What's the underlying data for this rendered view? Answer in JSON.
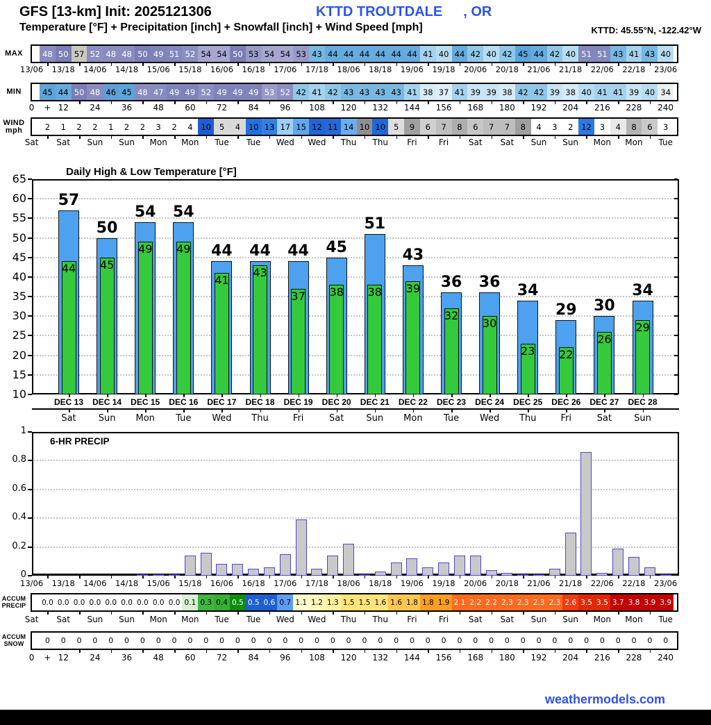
{
  "header": {
    "title": "GFS [13-km] Init: 2025121306",
    "station": "KTTD TROUTDALE",
    "state": ", OR",
    "subtitle": "Temperature [°F] + Precipitation [inch] + Snowfall [inch] + Wind Speed [mph]",
    "coordinates": "KTTD: 45.55°N, -122.42°W"
  },
  "strips": {
    "datetime_labels": [
      "13/06",
      "13/18",
      "14/06",
      "14/18",
      "15/06",
      "15/18",
      "16/06",
      "16/18",
      "17/06",
      "17/18",
      "18/06",
      "18/18",
      "19/06",
      "19/18",
      "20/06",
      "20/18",
      "21/06",
      "21/18",
      "22/06",
      "22/18",
      "23/06"
    ],
    "hour_labels": [
      "0",
      "+",
      "12",
      "24",
      "36",
      "48",
      "60",
      "72",
      "84",
      "96",
      "108",
      "120",
      "132",
      "144",
      "156",
      "168",
      "180",
      "192",
      "204",
      "216",
      "228",
      "240"
    ],
    "day_labels": [
      "Sat",
      "Sat",
      "Sun",
      "Sun",
      "Mon",
      "Mon",
      "Tue",
      "Tue",
      "Wed",
      "Wed",
      "Thu",
      "Thu",
      "Fri",
      "Fri",
      "Sat",
      "Sat",
      "Sun",
      "Sun",
      "Mon",
      "Mon",
      "Tue"
    ],
    "max": {
      "label": "MAX",
      "cells": [
        [
          "48",
          "#8a8cc0",
          "#ffffff"
        ],
        [
          "50",
          "#7a7db6",
          "#ffffff"
        ],
        [
          "57",
          "#c9c9bc",
          "#000000"
        ],
        [
          "52",
          "#8b8ec2",
          "#ffffff"
        ],
        [
          "48",
          "#8a8cc0",
          "#ffffff"
        ],
        [
          "48",
          "#8a8cc0",
          "#ffffff"
        ],
        [
          "50",
          "#7a7db6",
          "#ffffff"
        ],
        [
          "49",
          "#8083ba",
          "#ffffff"
        ],
        [
          "51",
          "#8487bd",
          "#ffffff"
        ],
        [
          "52",
          "#8b8ec2",
          "#ffffff"
        ],
        [
          "54",
          "#a5a7d1",
          "#000000"
        ],
        [
          "54",
          "#a5a7d1",
          "#000000"
        ],
        [
          "50",
          "#7a7db6",
          "#ffffff"
        ],
        [
          "53",
          "#989bc8",
          "#000000"
        ],
        [
          "54",
          "#a5a7d1",
          "#000000"
        ],
        [
          "54",
          "#a5a7d1",
          "#000000"
        ],
        [
          "53",
          "#989bc8",
          "#000000"
        ],
        [
          "43",
          "#78b8e2",
          "#000000"
        ],
        [
          "44",
          "#66abde",
          "#000000"
        ],
        [
          "44",
          "#66abde",
          "#000000"
        ],
        [
          "44",
          "#66abde",
          "#000000"
        ],
        [
          "44",
          "#66abde",
          "#000000"
        ],
        [
          "44",
          "#66abde",
          "#000000"
        ],
        [
          "44",
          "#66abde",
          "#000000"
        ],
        [
          "41",
          "#a5d3ee",
          "#000000"
        ],
        [
          "40",
          "#b7ddf2",
          "#000000"
        ],
        [
          "44",
          "#66abde",
          "#000000"
        ],
        [
          "42",
          "#8fc7e9",
          "#000000"
        ],
        [
          "40",
          "#b7ddf2",
          "#000000"
        ],
        [
          "42",
          "#8fc7e9",
          "#000000"
        ],
        [
          "45",
          "#5ca4da",
          "#000000"
        ],
        [
          "44",
          "#66abde",
          "#000000"
        ],
        [
          "42",
          "#8fc7e9",
          "#000000"
        ],
        [
          "40",
          "#b7ddf2",
          "#000000"
        ],
        [
          "51",
          "#8487bd",
          "#ffffff"
        ],
        [
          "51",
          "#8487bd",
          "#ffffff"
        ],
        [
          "43",
          "#78b8e2",
          "#000000"
        ],
        [
          "41",
          "#a5d3ee",
          "#000000"
        ],
        [
          "43",
          "#78b8e2",
          "#000000"
        ],
        [
          "40",
          "#b7ddf2",
          "#000000"
        ]
      ]
    },
    "min": {
      "label": "MIN",
      "cells": [
        [
          "45",
          "#5ca4da",
          "#000000"
        ],
        [
          "44",
          "#66abde",
          "#000000"
        ],
        [
          "50",
          "#7a7db6",
          "#ffffff"
        ],
        [
          "48",
          "#8a8cc0",
          "#ffffff"
        ],
        [
          "46",
          "#5f9ed6",
          "#000000"
        ],
        [
          "45",
          "#5ca4da",
          "#000000"
        ],
        [
          "48",
          "#8a8cc0",
          "#ffffff"
        ],
        [
          "47",
          "#858cc0",
          "#ffffff"
        ],
        [
          "49",
          "#8083ba",
          "#ffffff"
        ],
        [
          "49",
          "#8083ba",
          "#ffffff"
        ],
        [
          "52",
          "#8b8ec2",
          "#ffffff"
        ],
        [
          "49",
          "#8083ba",
          "#ffffff"
        ],
        [
          "49",
          "#8083ba",
          "#ffffff"
        ],
        [
          "49",
          "#8083ba",
          "#ffffff"
        ],
        [
          "53",
          "#989bc8",
          "#ffffff"
        ],
        [
          "52",
          "#8b8ec2",
          "#ffffff"
        ],
        [
          "42",
          "#8fc7e9",
          "#000000"
        ],
        [
          "41",
          "#a5d3ee",
          "#000000"
        ],
        [
          "42",
          "#8fc7e9",
          "#000000"
        ],
        [
          "43",
          "#78b8e2",
          "#000000"
        ],
        [
          "43",
          "#78b8e2",
          "#000000"
        ],
        [
          "43",
          "#78b8e2",
          "#000000"
        ],
        [
          "43",
          "#78b8e2",
          "#000000"
        ],
        [
          "41",
          "#a5d3ee",
          "#000000"
        ],
        [
          "38",
          "#d6ecf7",
          "#000000"
        ],
        [
          "37",
          "#deeff9",
          "#000000"
        ],
        [
          "41",
          "#a5d3ee",
          "#000000"
        ],
        [
          "39",
          "#c8e5f4",
          "#000000"
        ],
        [
          "39",
          "#c8e5f4",
          "#000000"
        ],
        [
          "38",
          "#d6ecf7",
          "#000000"
        ],
        [
          "42",
          "#8fc7e9",
          "#000000"
        ],
        [
          "42",
          "#8fc7e9",
          "#000000"
        ],
        [
          "39",
          "#c8e5f4",
          "#000000"
        ],
        [
          "38",
          "#d6ecf7",
          "#000000"
        ],
        [
          "40",
          "#b7ddf2",
          "#000000"
        ],
        [
          "41",
          "#a5d3ee",
          "#000000"
        ],
        [
          "41",
          "#a5d3ee",
          "#000000"
        ],
        [
          "39",
          "#c8e5f4",
          "#000000"
        ],
        [
          "40",
          "#b7ddf2",
          "#000000"
        ],
        [
          "34",
          "#e9f2ef",
          "#000000"
        ]
      ]
    },
    "wind": {
      "label": "WIND",
      "sublabel": "mph",
      "cells": [
        [
          "2",
          "#ffffff"
        ],
        [
          "1",
          "#ffffff"
        ],
        [
          "2",
          "#ffffff"
        ],
        [
          "2",
          "#ffffff"
        ],
        [
          "1",
          "#ffffff"
        ],
        [
          "2",
          "#ffffff"
        ],
        [
          "2",
          "#ffffff"
        ],
        [
          "3",
          "#ffffff"
        ],
        [
          "2",
          "#ffffff"
        ],
        [
          "4",
          "#ffffff"
        ],
        [
          "10",
          "#1b5fd3"
        ],
        [
          "5",
          "#d9d9d9"
        ],
        [
          "4",
          "#d9d9d9"
        ],
        [
          "10",
          "#2271de"
        ],
        [
          "13",
          "#3180e3"
        ],
        [
          "17",
          "#9fcef6"
        ],
        [
          "15",
          "#62a7ed"
        ],
        [
          "12",
          "#2066d6"
        ],
        [
          "11",
          "#2569d8"
        ],
        [
          "14",
          "#6cadf0"
        ],
        [
          "10",
          "#8f8f8f"
        ],
        [
          "10",
          "#2068d7"
        ],
        [
          "5",
          "#dedede"
        ],
        [
          "9",
          "#a0a0a0"
        ],
        [
          "6",
          "#cfcfcf"
        ],
        [
          "7",
          "#bfbfbf"
        ],
        [
          "8",
          "#aeaeae"
        ],
        [
          "6",
          "#c7c7c7"
        ],
        [
          "7",
          "#bdbdbd"
        ],
        [
          "7",
          "#bdbdbd"
        ],
        [
          "8",
          "#9e9e9e"
        ],
        [
          "4",
          "#ffffff"
        ],
        [
          "3",
          "#ffffff"
        ],
        [
          "2",
          "#ffffff"
        ],
        [
          "12",
          "#2b79e5"
        ],
        [
          "3",
          "#ffffff"
        ],
        [
          "4",
          "#e9e9e9"
        ],
        [
          "8",
          "#b4b4b4"
        ],
        [
          "6",
          "#cacaca"
        ],
        [
          "3",
          "#ffffff"
        ]
      ]
    },
    "accum_precip": {
      "label": "ACCUM",
      "sublabel": "PRECIP",
      "cells": [
        [
          "0.0",
          "#ffffff"
        ],
        [
          "0.0",
          "#ffffff"
        ],
        [
          "0.0",
          "#ffffff"
        ],
        [
          "0.0",
          "#ffffff"
        ],
        [
          "0.0",
          "#ffffff"
        ],
        [
          "0.0",
          "#ffffff"
        ],
        [
          "0.0",
          "#ffffff"
        ],
        [
          "0.0",
          "#ffffff"
        ],
        [
          "0.0",
          "#ffffff"
        ],
        [
          "0.1",
          "#d9f0d2"
        ],
        [
          "0.3",
          "#41b441"
        ],
        [
          "0.4",
          "#38ae38"
        ],
        [
          "0.5",
          "#108c10",
          "#ffffff"
        ],
        [
          "0.5",
          "#1e5ed0",
          "#ffffff"
        ],
        [
          "0.6",
          "#1e5ed0",
          "#ffffff"
        ],
        [
          "0.7",
          "#5e9cf2"
        ],
        [
          "1.1",
          "#ffffd2"
        ],
        [
          "1.2",
          "#fff9ba"
        ],
        [
          "1.3",
          "#fff1a0"
        ],
        [
          "1.5",
          "#ffe47c"
        ],
        [
          "1.5",
          "#ffe47c"
        ],
        [
          "1.6",
          "#ffe47c"
        ],
        [
          "1.6",
          "#ffc751"
        ],
        [
          "1.8",
          "#ffc751"
        ],
        [
          "1.8",
          "#ff9d1f"
        ],
        [
          "1.9",
          "#ff9d1f"
        ],
        [
          "2.1",
          "#ff6a1f",
          "#ffffff"
        ],
        [
          "2.2",
          "#ff6a1f",
          "#ffffff"
        ],
        [
          "2.2",
          "#ff6a1f",
          "#ffffff"
        ],
        [
          "2.3",
          "#ff6a1f",
          "#ffffff"
        ],
        [
          "2.3",
          "#ff6a1f",
          "#ffffff"
        ],
        [
          "2.3",
          "#ff6a1f",
          "#ffffff"
        ],
        [
          "2.3",
          "#ff6a1f",
          "#ffffff"
        ],
        [
          "2.6",
          "#f23b11",
          "#ffffff"
        ],
        [
          "3.5",
          "#e02802",
          "#ffffff"
        ],
        [
          "3.5",
          "#e02802",
          "#ffffff"
        ],
        [
          "3.7",
          "#c10000",
          "#ffffff"
        ],
        [
          "3.8",
          "#c10000",
          "#ffffff"
        ],
        [
          "3.9",
          "#c10000",
          "#ffffff"
        ],
        [
          "3.9",
          "#c10000",
          "#ffffff"
        ]
      ]
    },
    "accum_snow": {
      "label": "ACCUM",
      "sublabel": "SNOW",
      "cell_value": "0",
      "cell_count": 40,
      "cell_bg": "#ffffff"
    }
  },
  "chart_data": [
    {
      "type": "bar",
      "title": "Daily High & Low Temperature [°F]",
      "categories": [
        "DEC 13",
        "DEC 14",
        "DEC 15",
        "DEC 16",
        "DEC 17",
        "DEC 18",
        "DEC 19",
        "DEC 20",
        "DEC 21",
        "DEC 22",
        "DEC 23",
        "DEC 24",
        "DEC 25",
        "DEC 26",
        "DEC 27",
        "DEC 28"
      ],
      "weekday_labels": [
        "Sat",
        "Sun",
        "Mon",
        "Tue",
        "Wed",
        "Thu",
        "Fri",
        "Sat",
        "Sun",
        "Mon",
        "Tue",
        "Wed",
        "Thu",
        "Fri",
        "Sat",
        "Sun"
      ],
      "series": [
        {
          "name": "Daily High",
          "color": "#4da1ee",
          "values": [
            57,
            50,
            54,
            54,
            44,
            44,
            44,
            45,
            51,
            43,
            36,
            36,
            34,
            29,
            30,
            34
          ]
        },
        {
          "name": "Daily Low",
          "color": "#35c93c",
          "values": [
            44,
            45,
            49,
            49,
            41,
            43,
            37,
            38,
            38,
            39,
            32,
            30,
            23,
            22,
            26,
            29
          ]
        }
      ],
      "ylim": [
        10,
        65
      ],
      "ytick_step": 5,
      "grid": "dotted"
    },
    {
      "type": "bar",
      "title": "6-HR PRECIP",
      "x_hours": [
        6,
        12,
        18,
        24,
        30,
        36,
        42,
        48,
        54,
        60,
        66,
        72,
        78,
        84,
        90,
        96,
        102,
        108,
        114,
        120,
        126,
        132,
        138,
        144,
        150,
        156,
        162,
        168,
        174,
        180,
        186,
        192,
        198,
        204,
        210,
        216,
        222,
        228,
        234,
        240
      ],
      "values": [
        0,
        0,
        0,
        0,
        0,
        0,
        0.01,
        0.01,
        0.01,
        0.14,
        0.16,
        0.08,
        0.08,
        0.05,
        0.06,
        0.15,
        0.39,
        0.05,
        0.14,
        0.22,
        0.01,
        0.03,
        0.09,
        0.12,
        0.06,
        0.09,
        0.14,
        0.14,
        0.04,
        0.02,
        0.01,
        0.01,
        0.05,
        0.3,
        0.86,
        0.02,
        0.19,
        0.13,
        0.06,
        0.01
      ],
      "xtick_labels": [
        "13/06",
        "13/18",
        "14/06",
        "14/18",
        "15/06",
        "15/18",
        "16/06",
        "16/18",
        "17/06",
        "17/18",
        "18/06",
        "18/18",
        "19/06",
        "19/18",
        "20/06",
        "20/18",
        "21/06",
        "21/18",
        "22/06",
        "22/18",
        "23/06"
      ],
      "ylim": [
        0,
        1
      ],
      "yticks": [
        0,
        0.2,
        0.4,
        0.6,
        0.8,
        1
      ],
      "bar_fill": "#c9c9c9",
      "bar_border": "#5044d2"
    }
  ],
  "footer": {
    "brand": "weathermodels.com"
  },
  "colors": {
    "accent_blue": "#2b55ee",
    "brand_blue": "#3150e8",
    "high_bar": "#4da1ee",
    "low_bar": "#35c93c"
  }
}
